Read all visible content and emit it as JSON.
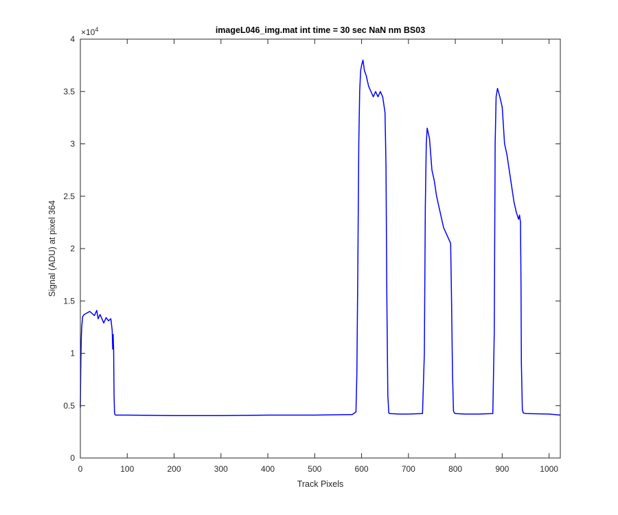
{
  "chart_data": {
    "type": "line",
    "title": "imageL046_img.mat int time = 30 sec  NaN nm BS03",
    "xlabel": "Track Pixels",
    "ylabel": "Signal (ADU) at pixel 364",
    "xlim": [
      0,
      1024
    ],
    "ylim": [
      0,
      40000
    ],
    "x_ticks": [
      0,
      100,
      200,
      300,
      400,
      500,
      600,
      700,
      800,
      900,
      1000
    ],
    "y_ticks": [
      0,
      5000,
      10000,
      15000,
      20000,
      25000,
      30000,
      35000,
      40000
    ],
    "x_tick_labels": [
      "0",
      "100",
      "200",
      "300",
      "400",
      "500",
      "600",
      "700",
      "800",
      "900",
      "1000"
    ],
    "y_tick_labels": [
      "0",
      "0.5",
      "1",
      "1.5",
      "2",
      "2.5",
      "3",
      "3.5",
      "4"
    ],
    "y_exponent_label": "×10",
    "y_exponent_power": "4",
    "grid": false,
    "legend": "none",
    "series": [
      {
        "color": "#0000ff",
        "x": [
          0,
          1,
          2,
          3,
          5,
          8,
          12,
          20,
          30,
          35,
          38,
          42,
          50,
          55,
          60,
          65,
          68,
          69,
          70,
          71,
          72,
          73,
          74,
          75,
          76,
          78,
          80,
          100,
          200,
          300,
          400,
          500,
          580,
          588,
          590,
          592,
          594,
          596,
          598,
          600,
          603,
          606,
          610,
          615,
          620,
          625,
          630,
          635,
          640,
          645,
          650,
          652,
          654,
          656,
          658,
          660,
          680,
          700,
          730,
          734,
          736,
          738,
          740,
          745,
          750,
          755,
          760,
          765,
          770,
          775,
          780,
          785,
          790,
          792,
          794,
          796,
          798,
          800,
          820,
          850,
          880,
          883,
          885,
          887,
          890,
          895,
          900,
          905,
          910,
          915,
          920,
          925,
          930,
          935,
          937,
          939,
          940,
          941,
          943,
          945,
          950,
          1000,
          1024
        ],
        "y": [
          4800,
          9000,
          11500,
          12500,
          13500,
          13700,
          13800,
          14000,
          13600,
          14100,
          13300,
          13700,
          12900,
          13400,
          13100,
          13300,
          12200,
          10400,
          11800,
          10300,
          6000,
          4300,
          4150,
          4100,
          4100,
          4100,
          4100,
          4100,
          4050,
          4050,
          4100,
          4100,
          4150,
          4400,
          8000,
          18000,
          30000,
          35000,
          37000,
          37500,
          38000,
          37000,
          36500,
          35500,
          35000,
          34500,
          35000,
          34500,
          35000,
          34500,
          33000,
          28000,
          15000,
          6000,
          4300,
          4250,
          4200,
          4200,
          4250,
          10000,
          24000,
          30000,
          31500,
          30500,
          27500,
          26500,
          25000,
          24000,
          23000,
          22000,
          21500,
          21000,
          20500,
          15000,
          8000,
          4500,
          4300,
          4250,
          4200,
          4200,
          4250,
          12000,
          30000,
          34500,
          35300,
          34500,
          33500,
          30000,
          29000,
          27500,
          26000,
          24500,
          23500,
          22800,
          23200,
          22500,
          17000,
          9000,
          4600,
          4300,
          4250,
          4200,
          4100
        ]
      }
    ]
  }
}
